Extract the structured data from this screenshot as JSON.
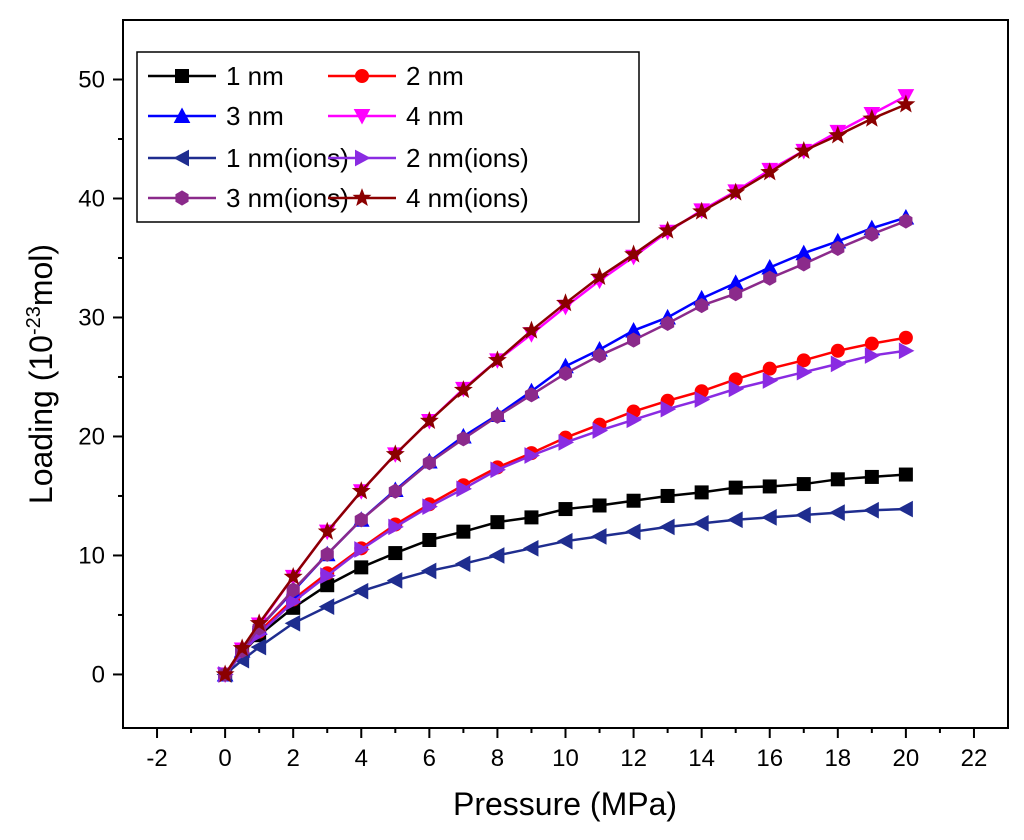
{
  "chart_data": {
    "type": "line",
    "xlabel": "Pressure (MPa)",
    "ylabel_main": "Loading (10",
    "ylabel_sup": "-23",
    "ylabel_tail": "mol)",
    "xlim": [
      -3,
      23
    ],
    "ylim": [
      -4.5,
      55
    ],
    "xticks": [
      -2,
      0,
      2,
      4,
      6,
      8,
      10,
      12,
      14,
      16,
      18,
      20,
      22
    ],
    "yticks": [
      0,
      10,
      20,
      30,
      40,
      50
    ],
    "grid": false,
    "legend_position": "top-left",
    "x": [
      0,
      0.5,
      1,
      2,
      3,
      4,
      5,
      6,
      7,
      8,
      9,
      10,
      11,
      12,
      13,
      14,
      15,
      16,
      17,
      18,
      19,
      20
    ],
    "series": [
      {
        "name": "1 nm",
        "color": "#000000",
        "marker": "square",
        "values": [
          0,
          1.8,
          3.3,
          5.6,
          7.5,
          9.0,
          10.2,
          11.3,
          12.0,
          12.8,
          13.2,
          13.9,
          14.2,
          14.6,
          15.0,
          15.3,
          15.7,
          15.8,
          16.0,
          16.4,
          16.6,
          16.8
        ]
      },
      {
        "name": "2 nm",
        "color": "#ff0000",
        "marker": "circle",
        "values": [
          0,
          1.9,
          3.6,
          6.3,
          8.5,
          10.6,
          12.6,
          14.3,
          15.9,
          17.4,
          18.6,
          19.9,
          21.0,
          22.1,
          23.0,
          23.8,
          24.8,
          25.7,
          26.4,
          27.2,
          27.8,
          28.3
        ]
      },
      {
        "name": "3 nm",
        "color": "#0000ff",
        "marker": "triangle-up",
        "values": [
          0,
          2.0,
          3.9,
          7.0,
          10.1,
          13.0,
          15.5,
          17.9,
          20.0,
          21.8,
          23.8,
          25.9,
          27.3,
          28.9,
          30.0,
          31.6,
          32.9,
          34.2,
          35.4,
          36.4,
          37.5,
          38.4
        ]
      },
      {
        "name": "4 nm",
        "color": "#ff00ff",
        "marker": "triangle-down",
        "values": [
          0,
          2.1,
          4.2,
          8.2,
          12.0,
          15.4,
          18.5,
          21.3,
          24.0,
          26.4,
          28.6,
          30.9,
          33.1,
          35.1,
          37.2,
          39.0,
          40.6,
          42.4,
          44.0,
          45.6,
          47.1,
          48.6
        ]
      },
      {
        "name": "1 nm(ions)",
        "color": "#1f2d8f",
        "marker": "triangle-left",
        "values": [
          0,
          1.2,
          2.3,
          4.3,
          5.7,
          7.0,
          7.9,
          8.7,
          9.3,
          10.0,
          10.6,
          11.2,
          11.6,
          12.0,
          12.4,
          12.7,
          13.0,
          13.2,
          13.4,
          13.6,
          13.8,
          13.9
        ]
      },
      {
        "name": "2 nm(ions)",
        "color": "#8a2be2",
        "marker": "triangle-right",
        "values": [
          0,
          1.8,
          3.4,
          6.1,
          8.3,
          10.5,
          12.4,
          14.1,
          15.6,
          17.2,
          18.4,
          19.5,
          20.5,
          21.4,
          22.3,
          23.1,
          24.0,
          24.7,
          25.4,
          26.1,
          26.8,
          27.2
        ]
      },
      {
        "name": "3 nm(ions)",
        "color": "#8b2a8b",
        "marker": "hexagon",
        "values": [
          0,
          2.0,
          3.9,
          7.1,
          10.1,
          13.0,
          15.4,
          17.8,
          19.8,
          21.7,
          23.5,
          25.3,
          26.8,
          28.1,
          29.5,
          31.0,
          32.0,
          33.3,
          34.5,
          35.8,
          37.0,
          38.1
        ]
      },
      {
        "name": "4 nm(ions)",
        "color": "#8b0000",
        "marker": "star",
        "values": [
          0,
          2.2,
          4.3,
          8.2,
          12.0,
          15.4,
          18.5,
          21.3,
          23.9,
          26.4,
          28.9,
          31.2,
          33.4,
          35.3,
          37.3,
          38.9,
          40.5,
          42.2,
          44.0,
          45.3,
          46.7,
          47.9
        ]
      }
    ]
  }
}
